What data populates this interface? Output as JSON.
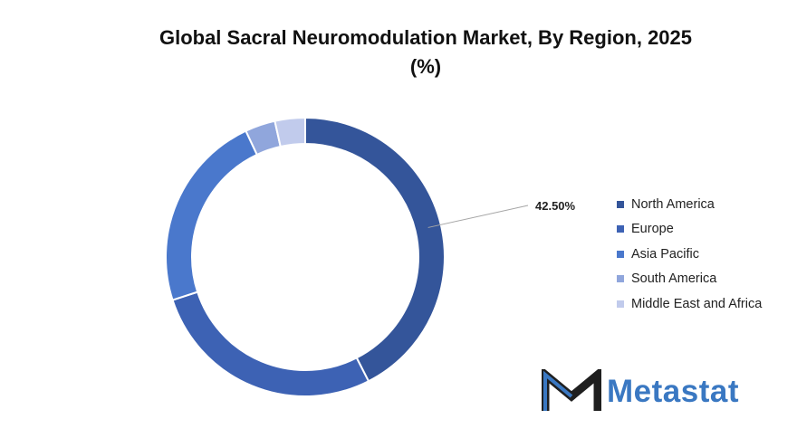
{
  "chart_data": {
    "type": "pie",
    "variant": "donut",
    "title_line1": "Global Sacral Neuromodulation Market, By Region, 2025",
    "title_line2": "(%)",
    "categories": [
      "North America",
      "Europe",
      "Asia Pacific",
      "South America",
      "Middle East and Africa"
    ],
    "values": [
      42.5,
      27.5,
      23,
      3.5,
      3.5
    ],
    "colors": [
      "#34559a",
      "#3d62b4",
      "#4a78cc",
      "#90a6dc",
      "#c1cbec"
    ],
    "data_labels": [
      {
        "category": "North America",
        "text": "42.50%"
      }
    ],
    "legend_position": "right"
  },
  "logo": {
    "text": "Metastat"
  }
}
